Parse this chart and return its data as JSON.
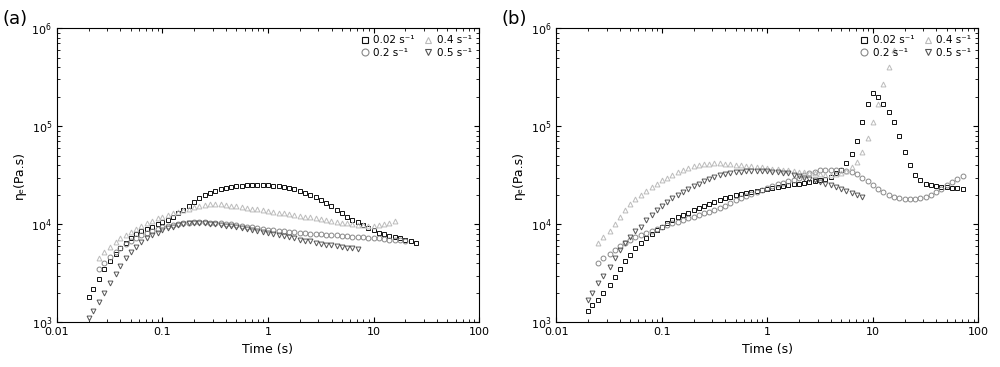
{
  "panel_a": {
    "label": "(a)",
    "series": [
      {
        "name": "0.02 s⁻¹",
        "marker": "s",
        "color": "#111111",
        "time": [
          0.02,
          0.022,
          0.025,
          0.028,
          0.032,
          0.036,
          0.04,
          0.045,
          0.05,
          0.056,
          0.063,
          0.071,
          0.08,
          0.09,
          0.1,
          0.112,
          0.126,
          0.141,
          0.158,
          0.178,
          0.2,
          0.224,
          0.251,
          0.282,
          0.316,
          0.355,
          0.398,
          0.447,
          0.501,
          0.562,
          0.631,
          0.708,
          0.794,
          0.891,
          1.0,
          1.12,
          1.26,
          1.41,
          1.58,
          1.78,
          2.0,
          2.24,
          2.51,
          2.82,
          3.16,
          3.55,
          3.98,
          4.47,
          5.01,
          5.62,
          6.31,
          7.08,
          7.94,
          8.91,
          10.0,
          11.2,
          12.6,
          14.1,
          15.8,
          17.8,
          20.0,
          22.4,
          25.1
        ],
        "eta": [
          1800,
          2200,
          2800,
          3500,
          4200,
          5000,
          5800,
          6500,
          7200,
          7900,
          8500,
          9000,
          9500,
          10000,
          10500,
          11200,
          12000,
          13000,
          14000,
          15500,
          17000,
          18500,
          20000,
          21000,
          22000,
          22800,
          23500,
          24000,
          24500,
          24800,
          25000,
          25200,
          25300,
          25200,
          25000,
          24800,
          24500,
          24000,
          23500,
          22800,
          22000,
          21000,
          20000,
          19000,
          17800,
          16500,
          15200,
          14000,
          13000,
          12000,
          11200,
          10500,
          9800,
          9200,
          8700,
          8200,
          7900,
          7600,
          7400,
          7200,
          7000,
          6800,
          6500
        ]
      },
      {
        "name": "0.2 s⁻¹",
        "marker": "o",
        "color": "#888888",
        "time": [
          0.025,
          0.028,
          0.032,
          0.036,
          0.04,
          0.045,
          0.05,
          0.056,
          0.063,
          0.071,
          0.08,
          0.09,
          0.1,
          0.112,
          0.126,
          0.141,
          0.158,
          0.178,
          0.2,
          0.224,
          0.251,
          0.282,
          0.316,
          0.355,
          0.398,
          0.447,
          0.501,
          0.562,
          0.631,
          0.708,
          0.794,
          0.891,
          1.0,
          1.12,
          1.26,
          1.41,
          1.58,
          1.78,
          2.0,
          2.24,
          2.51,
          2.82,
          3.16,
          3.55,
          3.98,
          4.47,
          5.01,
          5.62,
          6.31,
          7.08,
          7.94,
          8.91,
          10.0,
          11.2,
          12.6,
          14.1,
          15.8,
          17.8,
          20.0
        ],
        "eta": [
          3500,
          4000,
          4600,
          5200,
          5800,
          6300,
          6800,
          7300,
          7800,
          8200,
          8600,
          9000,
          9300,
          9600,
          9900,
          10100,
          10300,
          10400,
          10500,
          10500,
          10500,
          10400,
          10300,
          10200,
          10100,
          10000,
          9800,
          9700,
          9500,
          9300,
          9200,
          9000,
          8800,
          8700,
          8600,
          8500,
          8400,
          8300,
          8200,
          8100,
          8000,
          7900,
          7900,
          7800,
          7700,
          7700,
          7600,
          7600,
          7500,
          7400,
          7400,
          7300,
          7200,
          7200,
          7100,
          7000,
          7000,
          6900,
          6800
        ]
      },
      {
        "name": "0.4 s⁻¹",
        "marker": "^",
        "color": "#bbbbbb",
        "time": [
          0.025,
          0.028,
          0.032,
          0.036,
          0.04,
          0.045,
          0.05,
          0.056,
          0.063,
          0.071,
          0.08,
          0.09,
          0.1,
          0.112,
          0.126,
          0.141,
          0.158,
          0.178,
          0.2,
          0.224,
          0.251,
          0.282,
          0.316,
          0.355,
          0.398,
          0.447,
          0.501,
          0.562,
          0.631,
          0.708,
          0.794,
          0.891,
          1.0,
          1.12,
          1.26,
          1.41,
          1.58,
          1.78,
          2.0,
          2.24,
          2.51,
          2.82,
          3.16,
          3.55,
          3.98,
          4.47,
          5.01,
          5.62,
          6.31,
          7.08,
          7.94,
          8.91,
          10.0,
          11.2,
          12.6,
          14.1,
          15.8
        ],
        "eta": [
          4500,
          5200,
          5900,
          6600,
          7200,
          7800,
          8400,
          9000,
          9600,
          10200,
          10800,
          11500,
          12000,
          12500,
          13000,
          13500,
          14000,
          14500,
          15000,
          15500,
          15800,
          16000,
          16100,
          16000,
          15800,
          15500,
          15200,
          15000,
          14700,
          14500,
          14300,
          14000,
          13800,
          13500,
          13200,
          13000,
          12700,
          12500,
          12200,
          12000,
          11800,
          11500,
          11300,
          11000,
          10800,
          10500,
          10300,
          10200,
          10000,
          9900,
          9800,
          9700,
          9700,
          9800,
          10000,
          10300,
          10700
        ]
      },
      {
        "name": "0.5 s⁻¹",
        "marker": "v",
        "color": "#555555",
        "time": [
          0.02,
          0.022,
          0.025,
          0.028,
          0.032,
          0.036,
          0.04,
          0.045,
          0.05,
          0.056,
          0.063,
          0.071,
          0.08,
          0.09,
          0.1,
          0.112,
          0.126,
          0.141,
          0.158,
          0.178,
          0.2,
          0.224,
          0.251,
          0.282,
          0.316,
          0.355,
          0.398,
          0.447,
          0.501,
          0.562,
          0.631,
          0.708,
          0.794,
          0.891,
          1.0,
          1.12,
          1.26,
          1.41,
          1.58,
          1.78,
          2.0,
          2.24,
          2.51,
          2.82,
          3.16,
          3.55,
          3.98,
          4.47,
          5.01,
          5.62,
          6.31,
          7.08
        ],
        "eta": [
          1100,
          1300,
          1600,
          2000,
          2500,
          3100,
          3800,
          4500,
          5200,
          5900,
          6600,
          7200,
          7700,
          8200,
          8700,
          9100,
          9500,
          9800,
          10000,
          10200,
          10300,
          10300,
          10200,
          10100,
          10000,
          9900,
          9700,
          9600,
          9400,
          9200,
          9000,
          8800,
          8600,
          8400,
          8200,
          8000,
          7800,
          7600,
          7400,
          7200,
          7000,
          6800,
          6700,
          6500,
          6300,
          6200,
          6100,
          6000,
          5900,
          5800,
          5700,
          5600
        ]
      }
    ],
    "xlim": [
      0.01,
      100
    ],
    "ylim": [
      1000.0,
      1000000.0
    ],
    "xlabel": "Time (s)",
    "ylabel": "ηₑ(Pa.s)"
  },
  "panel_b": {
    "label": "(b)",
    "series": [
      {
        "name": "0.02 s⁻¹",
        "marker": "s",
        "color": "#111111",
        "time": [
          0.02,
          0.022,
          0.025,
          0.028,
          0.032,
          0.036,
          0.04,
          0.045,
          0.05,
          0.056,
          0.063,
          0.071,
          0.08,
          0.09,
          0.1,
          0.112,
          0.126,
          0.141,
          0.158,
          0.178,
          0.2,
          0.224,
          0.251,
          0.282,
          0.316,
          0.355,
          0.398,
          0.447,
          0.501,
          0.562,
          0.631,
          0.708,
          0.794,
          0.891,
          1.0,
          1.12,
          1.26,
          1.41,
          1.58,
          1.78,
          2.0,
          2.24,
          2.51,
          2.82,
          3.16,
          3.55,
          3.98,
          4.47,
          5.01,
          5.62,
          6.31,
          7.08,
          7.94,
          8.91,
          10.0,
          11.2,
          12.6,
          14.1,
          15.8,
          17.8,
          20.0,
          22.4,
          25.1,
          28.2,
          31.6,
          35.5,
          39.8,
          44.7,
          50.1,
          56.2,
          63.1,
          70.8
        ],
        "eta": [
          1300,
          1500,
          1700,
          2000,
          2400,
          2900,
          3500,
          4200,
          4900,
          5700,
          6500,
          7300,
          8000,
          8800,
          9500,
          10200,
          11000,
          11800,
          12500,
          13200,
          14000,
          14800,
          15500,
          16200,
          17000,
          17800,
          18500,
          19200,
          20000,
          20500,
          21000,
          21500,
          22000,
          22500,
          23000,
          23500,
          24000,
          24500,
          25000,
          25500,
          26000,
          26500,
          27000,
          27500,
          28000,
          29000,
          30500,
          33000,
          36000,
          42000,
          52000,
          70000,
          110000,
          170000,
          220000,
          200000,
          170000,
          140000,
          110000,
          80000,
          55000,
          40000,
          32000,
          28000,
          26000,
          25000,
          24500,
          24000,
          23800,
          23500,
          23200,
          23000
        ]
      },
      {
        "name": "0.2 s⁻¹",
        "marker": "o",
        "color": "#888888",
        "time": [
          0.025,
          0.028,
          0.032,
          0.036,
          0.04,
          0.045,
          0.05,
          0.056,
          0.063,
          0.071,
          0.08,
          0.09,
          0.1,
          0.112,
          0.126,
          0.141,
          0.158,
          0.178,
          0.2,
          0.224,
          0.251,
          0.282,
          0.316,
          0.355,
          0.398,
          0.447,
          0.501,
          0.562,
          0.631,
          0.708,
          0.794,
          0.891,
          1.0,
          1.12,
          1.26,
          1.41,
          1.58,
          1.78,
          2.0,
          2.24,
          2.51,
          2.82,
          3.16,
          3.55,
          3.98,
          4.47,
          5.01,
          5.62,
          6.31,
          7.08,
          7.94,
          8.91,
          10.0,
          11.2,
          12.6,
          14.1,
          15.8,
          17.8,
          20.0,
          22.4,
          25.1,
          28.2,
          31.6,
          35.5,
          39.8,
          44.7,
          50.1,
          56.2,
          63.1,
          70.8
        ],
        "eta": [
          4000,
          4500,
          5000,
          5500,
          6000,
          6500,
          7000,
          7400,
          7800,
          8200,
          8600,
          9000,
          9400,
          9800,
          10200,
          10600,
          11000,
          11500,
          12000,
          12500,
          13000,
          13500,
          14000,
          14800,
          15500,
          16500,
          17500,
          18500,
          19500,
          20500,
          21500,
          22500,
          23500,
          24500,
          25500,
          26500,
          27500,
          28500,
          30000,
          31500,
          33000,
          34500,
          35500,
          36000,
          36200,
          36000,
          35500,
          35000,
          34000,
          32500,
          30000,
          27500,
          25000,
          23000,
          21500,
          20000,
          19000,
          18500,
          18000,
          18000,
          18200,
          18500,
          19000,
          20000,
          21500,
          23000,
          25000,
          27000,
          29000,
          31000
        ]
      },
      {
        "name": "0.4 s⁻¹",
        "marker": "^",
        "color": "#bbbbbb",
        "time": [
          0.025,
          0.028,
          0.032,
          0.036,
          0.04,
          0.045,
          0.05,
          0.056,
          0.063,
          0.071,
          0.08,
          0.09,
          0.1,
          0.112,
          0.126,
          0.141,
          0.158,
          0.178,
          0.2,
          0.224,
          0.251,
          0.282,
          0.316,
          0.355,
          0.398,
          0.447,
          0.501,
          0.562,
          0.631,
          0.708,
          0.794,
          0.891,
          1.0,
          1.12,
          1.26,
          1.41,
          1.58,
          1.78,
          2.0,
          2.24,
          2.51,
          2.82,
          3.16,
          3.55,
          3.98,
          4.47,
          5.01,
          5.62,
          6.31,
          7.08,
          7.94,
          8.91,
          10.0,
          11.2,
          12.6,
          14.1,
          15.8
        ],
        "eta": [
          6500,
          7500,
          8500,
          10000,
          12000,
          14000,
          16000,
          18000,
          20000,
          22000,
          24000,
          26000,
          28000,
          30000,
          32000,
          34000,
          36000,
          37500,
          39000,
          40000,
          41000,
          41500,
          42000,
          42000,
          41500,
          41000,
          40500,
          40000,
          39500,
          39000,
          38500,
          38000,
          37500,
          37000,
          36500,
          36000,
          35500,
          35000,
          34500,
          34000,
          33500,
          33000,
          32500,
          32000,
          32000,
          32500,
          33000,
          35000,
          38000,
          43000,
          55000,
          75000,
          110000,
          170000,
          270000,
          400000,
          600000
        ]
      },
      {
        "name": "0.5 s⁻¹",
        "marker": "v",
        "color": "#555555",
        "time": [
          0.02,
          0.022,
          0.025,
          0.028,
          0.032,
          0.036,
          0.04,
          0.045,
          0.05,
          0.056,
          0.063,
          0.071,
          0.08,
          0.09,
          0.1,
          0.112,
          0.126,
          0.141,
          0.158,
          0.178,
          0.2,
          0.224,
          0.251,
          0.282,
          0.316,
          0.355,
          0.398,
          0.447,
          0.501,
          0.562,
          0.631,
          0.708,
          0.794,
          0.891,
          1.0,
          1.12,
          1.26,
          1.41,
          1.58,
          1.78,
          2.0,
          2.24,
          2.51,
          2.82,
          3.16,
          3.55,
          3.98,
          4.47,
          5.01,
          5.62,
          6.31,
          7.08,
          7.94
        ],
        "eta": [
          1700,
          2000,
          2500,
          3000,
          3700,
          4500,
          5500,
          6500,
          7500,
          8500,
          9500,
          11000,
          12500,
          14000,
          15500,
          17000,
          18500,
          20000,
          21500,
          23000,
          24500,
          26000,
          27500,
          29000,
          30500,
          31500,
          32500,
          33500,
          34000,
          34500,
          35000,
          35200,
          35300,
          35200,
          35000,
          34500,
          34000,
          33500,
          33000,
          32000,
          31000,
          30000,
          29000,
          28000,
          27000,
          26000,
          25000,
          24000,
          23000,
          22000,
          21000,
          20000,
          19000
        ]
      }
    ],
    "xlim": [
      0.01,
      100
    ],
    "ylim": [
      1000.0,
      1000000.0
    ],
    "xlabel": "Time (s)",
    "ylabel": "ηₑ(Pa.s)"
  },
  "marker_size": 3.5,
  "linewidth": 0
}
